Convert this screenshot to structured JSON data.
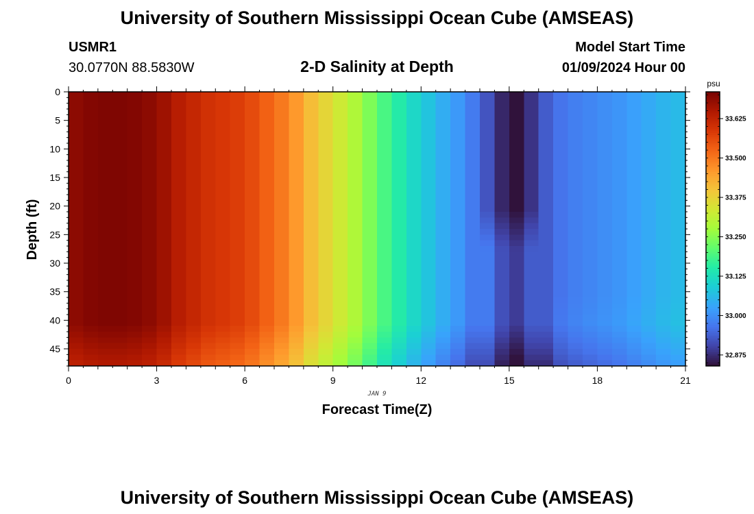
{
  "page": {
    "title": "University of Southern Mississippi Ocean Cube (AMSEAS)",
    "footer_title": "University of Southern Mississippi Ocean Cube (AMSEAS)"
  },
  "station": {
    "id": "USMR1",
    "coords": "30.0770N  88.5830W"
  },
  "plot_title": "2-D Salinity at Depth",
  "model_start": {
    "label": "Model Start Time",
    "value": "01/09/2024 Hour 00"
  },
  "chart_data": {
    "type": "heatmap",
    "title": "2-D Salinity at Depth",
    "xlabel": "Forecast Time(Z)",
    "ylabel": "Depth (ft)",
    "xlim": [
      0,
      21
    ],
    "ylim": [
      0,
      48
    ],
    "y_inverted": true,
    "x_ticks": [
      0,
      3,
      6,
      9,
      12,
      15,
      18,
      21
    ],
    "y_ticks": [
      0,
      5,
      10,
      15,
      20,
      25,
      30,
      35,
      40,
      45
    ],
    "date_annotation": {
      "text": "JAN 9",
      "x": 10.5
    },
    "time_step_hours": 0.5,
    "depth_step_ft": 1,
    "surface_salinity_by_time": {
      "times": [
        0,
        0.5,
        1,
        1.5,
        2,
        2.5,
        3,
        3.5,
        4,
        4.5,
        5,
        5.5,
        6,
        6.5,
        7,
        7.5,
        8,
        8.5,
        9,
        9.5,
        10,
        10.5,
        11,
        11.5,
        12,
        12.5,
        13,
        13.5,
        14,
        14.5,
        15,
        15.5,
        16,
        16.5,
        17,
        17.5,
        18,
        18.5,
        19,
        19.5,
        20,
        20.5
      ],
      "values": [
        33.69,
        33.7,
        33.705,
        33.705,
        33.7,
        33.69,
        33.67,
        33.64,
        33.62,
        33.6,
        33.59,
        33.58,
        33.56,
        33.53,
        33.5,
        33.46,
        33.41,
        33.37,
        33.33,
        33.29,
        33.24,
        33.19,
        33.15,
        33.11,
        33.075,
        33.04,
        33.01,
        32.97,
        32.92,
        32.865,
        32.84,
        32.88,
        32.93,
        32.96,
        32.975,
        32.985,
        32.995,
        33.005,
        33.02,
        33.035,
        33.05,
        33.06
      ]
    },
    "colorbar": {
      "unit": "psu",
      "min": 32.84,
      "max": 33.71,
      "tick_values": [
        32.875,
        33.0,
        33.125,
        33.25,
        33.375,
        33.5,
        33.625
      ],
      "tick_labels": [
        "32.875",
        "33.000",
        "33.125",
        "33.250",
        "33.375",
        "33.500",
        "33.625"
      ]
    }
  }
}
